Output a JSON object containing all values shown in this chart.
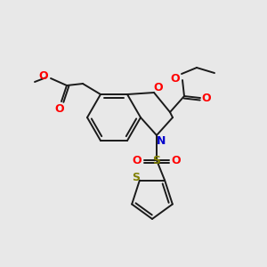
{
  "bg_color": "#e8e8e8",
  "bond_color": "#1a1a1a",
  "bond_width": 1.4,
  "O_color": "#ff0000",
  "N_color": "#0000cc",
  "S_color": "#808000",
  "figsize": [
    3.0,
    3.0
  ],
  "dpi": 100,
  "xlim": [
    0,
    300
  ],
  "ylim": [
    0,
    300
  ]
}
